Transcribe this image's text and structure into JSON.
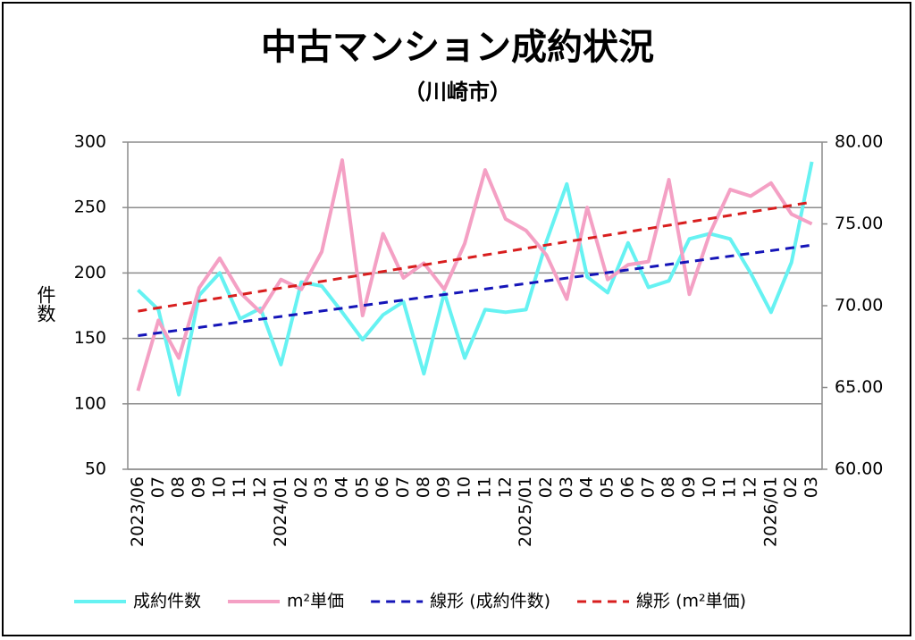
{
  "chart_data": {
    "type": "line",
    "title": "中古マンション成約状況",
    "subtitle": "（川崎市）",
    "y_label": "件数",
    "categories": [
      "2023/06",
      "07",
      "08",
      "09",
      "10",
      "11",
      "12",
      "2024/01",
      "02",
      "03",
      "04",
      "05",
      "06",
      "07",
      "08",
      "09",
      "10",
      "11",
      "12",
      "2025/01",
      "02",
      "03",
      "04",
      "05",
      "06",
      "07",
      "08",
      "09",
      "10",
      "11",
      "12",
      "2026/01",
      "02",
      "03"
    ],
    "series": [
      {
        "name": "成約件数",
        "color": "#66f2f2",
        "values": [
          187,
          172,
          107,
          183,
          200,
          165,
          173,
          130,
          193,
          190,
          170,
          149,
          168,
          178,
          123,
          185,
          135,
          172,
          170,
          172,
          224,
          268,
          197,
          185,
          223,
          189,
          194,
          226,
          230,
          226,
          200,
          170,
          208,
          285
        ]
      },
      {
        "name": "m²単価",
        "color": "#f4a0c4",
        "axis": "y2",
        "values": [
          64.8,
          69.1,
          66.8,
          71.1,
          72.9,
          70.8,
          69.6,
          71.6,
          71.0,
          73.3,
          78.9,
          69.4,
          74.4,
          71.7,
          72.6,
          71.0,
          73.8,
          78.3,
          75.3,
          74.6,
          73.1,
          70.4,
          76.0,
          71.6,
          72.5,
          72.7,
          77.7,
          70.7,
          74.4,
          77.1,
          76.7,
          77.5,
          75.6,
          75.0
        ]
      },
      {
        "name": "線形 (成約件数)",
        "color": "#1515b8",
        "dashed": true,
        "fit": "linear",
        "source": "成約件数"
      },
      {
        "name": "線形 (m²単価)",
        "color": "#d81e1e",
        "dashed": true,
        "fit": "linear",
        "source": "m²単価",
        "axis": "y2"
      }
    ],
    "ylim": [
      50,
      300
    ],
    "yticks": [
      50,
      100,
      150,
      200,
      250,
      300
    ],
    "y2lim": [
      60,
      80
    ],
    "y2ticks": [
      {
        "value": 60,
        "label": "60.00"
      },
      {
        "value": 65,
        "label": "65.00"
      },
      {
        "value": 70,
        "label": "70.00"
      },
      {
        "value": 75,
        "label": "75.00"
      },
      {
        "value": 80,
        "label": "80.00"
      }
    ],
    "grid": true,
    "legend": "bottom"
  }
}
